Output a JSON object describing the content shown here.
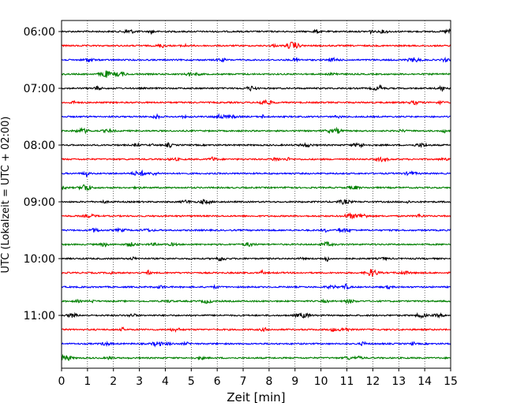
{
  "chart_data": {
    "type": "line",
    "title": "",
    "xlabel": "Zeit  [min]",
    "ylabel": "UTC (Lokalzeit = UTC + 02:00)",
    "xlim": [
      0,
      15
    ],
    "x_ticks": [
      "0",
      "1",
      "2",
      "3",
      "4",
      "5",
      "6",
      "7",
      "8",
      "9",
      "10",
      "11",
      "12",
      "13",
      "14",
      "15"
    ],
    "y_ticks": [
      "06:00",
      "07:00",
      "08:00",
      "09:00",
      "10:00",
      "11:00"
    ],
    "grid": "vertical dotted at each minute",
    "trace_colors": [
      "#000000",
      "#ff0000",
      "#0000ff",
      "#008000"
    ],
    "traces": [
      {
        "time": "06:00",
        "color": "#000000"
      },
      {
        "time": "06:15",
        "color": "#ff0000"
      },
      {
        "time": "06:30",
        "color": "#0000ff"
      },
      {
        "time": "06:45",
        "color": "#008000"
      },
      {
        "time": "07:00",
        "color": "#000000"
      },
      {
        "time": "07:15",
        "color": "#ff0000"
      },
      {
        "time": "07:30",
        "color": "#0000ff"
      },
      {
        "time": "07:45",
        "color": "#008000"
      },
      {
        "time": "08:00",
        "color": "#000000"
      },
      {
        "time": "08:15",
        "color": "#ff0000"
      },
      {
        "time": "08:30",
        "color": "#0000ff"
      },
      {
        "time": "08:45",
        "color": "#008000"
      },
      {
        "time": "09:00",
        "color": "#000000"
      },
      {
        "time": "09:15",
        "color": "#ff0000"
      },
      {
        "time": "09:30",
        "color": "#0000ff"
      },
      {
        "time": "09:45",
        "color": "#008000"
      },
      {
        "time": "10:00",
        "color": "#000000"
      },
      {
        "time": "10:15",
        "color": "#ff0000"
      },
      {
        "time": "10:30",
        "color": "#0000ff"
      },
      {
        "time": "10:45",
        "color": "#008000"
      },
      {
        "time": "11:00",
        "color": "#000000"
      },
      {
        "time": "11:15",
        "color": "#ff0000"
      },
      {
        "time": "11:30",
        "color": "#0000ff"
      },
      {
        "time": "11:45",
        "color": "#008000"
      }
    ]
  }
}
